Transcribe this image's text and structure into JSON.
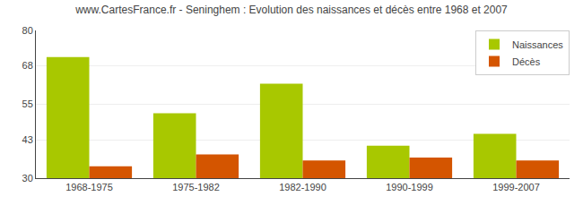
{
  "chart_data": {
    "type": "bar",
    "title": "www.CartesFrance.fr - Seninghem : Evolution des naissances et décès entre 1968 et 2007",
    "categories": [
      "1968-1975",
      "1975-1982",
      "1982-1990",
      "1990-1999",
      "1999-2007"
    ],
    "series": [
      {
        "name": "Naissances",
        "color": "#a8c800",
        "values": [
          71,
          52,
          62,
          41,
          45
        ]
      },
      {
        "name": "Décès",
        "color": "#d45500",
        "values": [
          34,
          38,
          36,
          37,
          36
        ]
      }
    ],
    "ylim": [
      30,
      80
    ],
    "yticks": [
      30,
      43,
      55,
      68,
      80
    ],
    "grid": true,
    "legend": "upper right"
  }
}
